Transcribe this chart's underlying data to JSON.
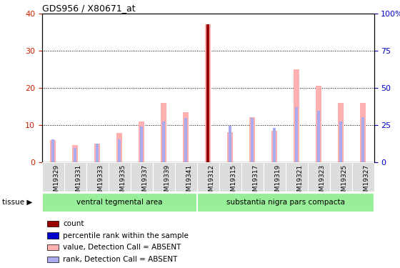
{
  "title": "GDS956 / X80671_at",
  "samples": [
    "GSM19329",
    "GSM19331",
    "GSM19333",
    "GSM19335",
    "GSM19337",
    "GSM19339",
    "GSM19341",
    "GSM19312",
    "GSM19315",
    "GSM19317",
    "GSM19319",
    "GSM19321",
    "GSM19323",
    "GSM19325",
    "GSM19327"
  ],
  "value_absent": [
    6.0,
    4.5,
    5.0,
    7.8,
    11.0,
    16.0,
    13.5,
    37.0,
    8.0,
    12.0,
    8.5,
    25.0,
    20.5,
    16.0,
    16.0
  ],
  "rank_absent": [
    6.2,
    3.9,
    5.0,
    6.2,
    9.5,
    11.0,
    11.8,
    19.0,
    9.8,
    11.8,
    9.2,
    14.8,
    13.8,
    11.0,
    12.0
  ],
  "count": [
    0,
    0,
    0,
    0,
    0,
    0,
    0,
    37.0,
    0,
    0,
    0,
    0,
    0,
    0,
    0
  ],
  "count_bar_color": "#990000",
  "value_absent_color": "#ffb0b0",
  "rank_absent_color": "#aaaaee",
  "ylim_left": [
    0,
    40
  ],
  "ylim_right": [
    0,
    100
  ],
  "yticks_left": [
    0,
    10,
    20,
    30,
    40
  ],
  "yticks_right": [
    0,
    25,
    50,
    75,
    100
  ],
  "y2ticklabels": [
    "0",
    "25",
    "50",
    "75",
    "100%"
  ],
  "tissue_groups": [
    {
      "label": "ventral tegmental area",
      "start": 0,
      "end": 7
    },
    {
      "label": "substantia nigra pars compacta",
      "start": 7,
      "end": 15
    }
  ],
  "tissue_label": "tissue",
  "tissue_color": "#99ee99",
  "tick_label_color_left": "#cc2200",
  "tick_label_color_right": "#0000cc",
  "bar_width": 0.25,
  "legend_items": [
    {
      "color": "#990000",
      "label": "count"
    },
    {
      "color": "#0000cc",
      "label": "percentile rank within the sample"
    },
    {
      "color": "#ffb0b0",
      "label": "value, Detection Call = ABSENT"
    },
    {
      "color": "#aaaaee",
      "label": "rank, Detection Call = ABSENT"
    }
  ]
}
